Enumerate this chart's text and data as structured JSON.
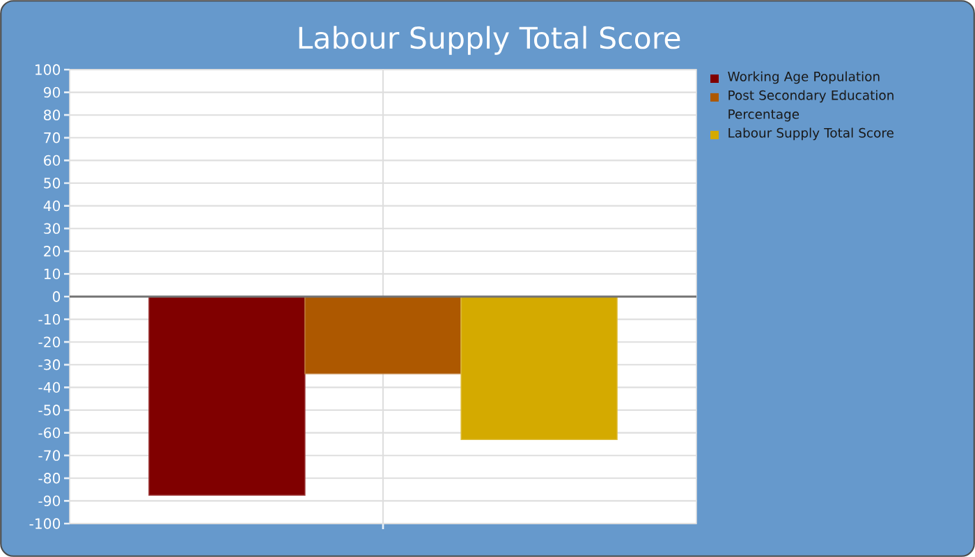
{
  "chart_data": {
    "type": "bar",
    "title": "Labour Supply Total Score",
    "categories": [
      null
    ],
    "series": [
      {
        "name": "Working Age Population",
        "color": "#800000",
        "values": [
          -87.5
        ]
      },
      {
        "name": "Post Secondary Education Percentage",
        "color": "#ad5800",
        "values": [
          -34
        ]
      },
      {
        "name": "Labour Supply Total Score",
        "color": "#d4aa00",
        "values": [
          -63
        ]
      }
    ],
    "ylim": [
      -100,
      100
    ],
    "yticks": [
      -100,
      -90,
      -80,
      -70,
      -60,
      -50,
      -40,
      -30,
      -20,
      -10,
      0,
      10,
      20,
      30,
      40,
      50,
      60,
      70,
      80,
      90,
      100
    ],
    "grid": true,
    "legend": "right"
  }
}
